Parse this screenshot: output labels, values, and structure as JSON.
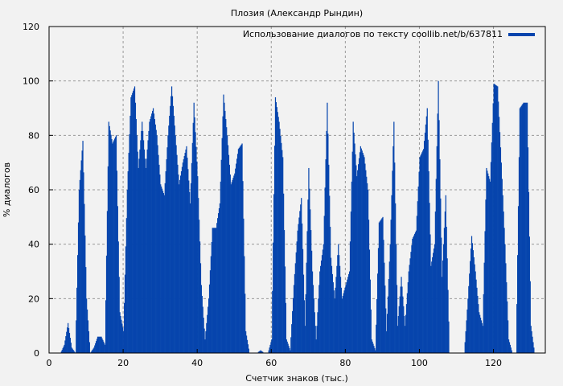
{
  "chart_data": {
    "type": "bar",
    "title": "Плозия (Александр Рындин)",
    "xlabel": "Счетчик знаков (тыс.)",
    "ylabel": "% диалогов",
    "xlim": [
      0,
      134
    ],
    "ylim": [
      0,
      120
    ],
    "xticks": [
      0,
      20,
      40,
      60,
      80,
      100,
      120
    ],
    "yticks": [
      0,
      20,
      40,
      60,
      80,
      100,
      120
    ],
    "grid": true,
    "legend": {
      "position": "top-right",
      "entries": [
        "Использование диалогов по тексту coollib.net/b/637811"
      ]
    },
    "series": [
      {
        "name": "Использование диалогов по тексту coollib.net/b/637811",
        "color": "#0645ad",
        "x_step": 1,
        "x_start": 0,
        "values": [
          0,
          0,
          0,
          0,
          3,
          11,
          2,
          0,
          60,
          78,
          20,
          0,
          2,
          6,
          6,
          3,
          85,
          77,
          80,
          15,
          8,
          60,
          94,
          98,
          68,
          85,
          68,
          85,
          90,
          80,
          62,
          58,
          80,
          98,
          80,
          62,
          70,
          76,
          55,
          92,
          65,
          25,
          5,
          20,
          46,
          46,
          55,
          95,
          80,
          62,
          66,
          75,
          77,
          8,
          0,
          0,
          0,
          1,
          0,
          0,
          5,
          94,
          85,
          72,
          5,
          1,
          25,
          45,
          57,
          10,
          68,
          30,
          5,
          30,
          40,
          92,
          35,
          20,
          40,
          20,
          25,
          30,
          85,
          65,
          76,
          72,
          60,
          5,
          1,
          48,
          50,
          8,
          40,
          85,
          10,
          28,
          10,
          30,
          42,
          45,
          72,
          75,
          90,
          32,
          40,
          100,
          28,
          58,
          0,
          0,
          0,
          0,
          0,
          20,
          43,
          30,
          15,
          10,
          68,
          63,
          99,
          98,
          70,
          40,
          5,
          0,
          0,
          90,
          92,
          92,
          10,
          0
        ]
      }
    ]
  }
}
